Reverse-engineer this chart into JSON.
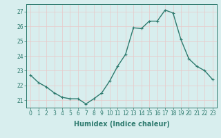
{
  "x": [
    0,
    1,
    2,
    3,
    4,
    5,
    6,
    7,
    8,
    9,
    10,
    11,
    12,
    13,
    14,
    15,
    16,
    17,
    18,
    19,
    20,
    21,
    22,
    23
  ],
  "y": [
    22.7,
    22.2,
    21.9,
    21.5,
    21.2,
    21.1,
    21.1,
    20.75,
    21.1,
    21.5,
    22.3,
    23.3,
    24.1,
    25.9,
    25.85,
    26.35,
    26.35,
    27.1,
    26.9,
    25.1,
    23.8,
    23.3,
    23.0,
    22.4
  ],
  "line_color": "#2d7a6e",
  "marker": "+",
  "marker_size": 3,
  "bg_color": "#d8eeee",
  "grid_color": "#e8c8c8",
  "xlabel": "Humidex (Indice chaleur)",
  "ylim": [
    20.5,
    27.5
  ],
  "xlim": [
    -0.5,
    23.5
  ],
  "yticks": [
    21,
    22,
    23,
    24,
    25,
    26,
    27
  ],
  "xticks": [
    0,
    1,
    2,
    3,
    4,
    5,
    6,
    7,
    8,
    9,
    10,
    11,
    12,
    13,
    14,
    15,
    16,
    17,
    18,
    19,
    20,
    21,
    22,
    23
  ],
  "tick_label_size": 5.5,
  "xlabel_size": 7,
  "line_width": 1.0,
  "text_color": "#2d7a6e",
  "spine_color": "#2d7a6e"
}
